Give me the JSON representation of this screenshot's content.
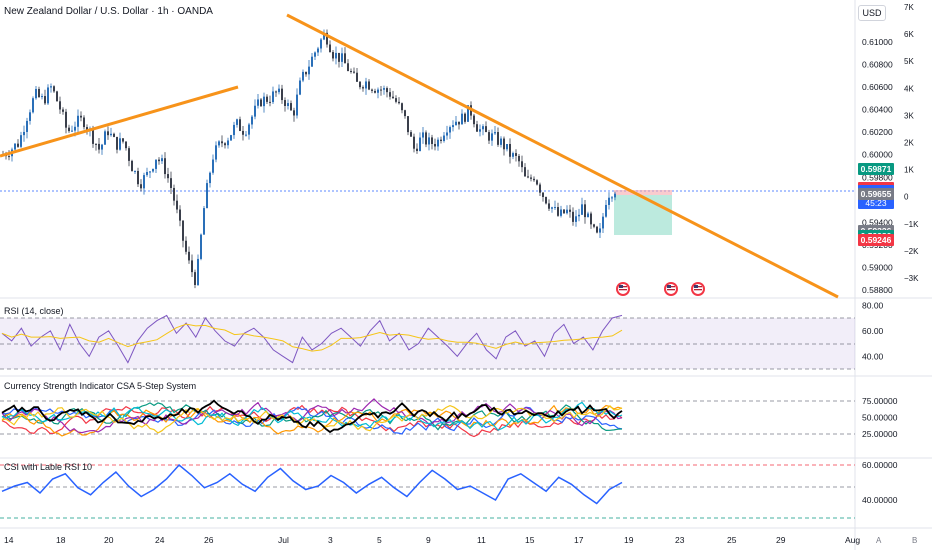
{
  "chart_data": [
    {
      "type": "candlestick",
      "title": "New Zealand Dollar / U.S. Dollar · 1h · OANDA",
      "currency": "USD",
      "price_ticks": [
        "0.61000",
        "0.60800",
        "0.60600",
        "0.60400",
        "0.60200",
        "0.60000",
        "0.59800",
        "0.59600",
        "0.59400",
        "0.59200",
        "0.59000",
        "0.58800"
      ],
      "left_axis_ticks": [
        "7K",
        "6K",
        "5K",
        "4K",
        "3K",
        "2K",
        "1K",
        "0",
        "−1K",
        "−2K",
        "−3K"
      ],
      "x_ticks": [
        "14",
        "18",
        "20",
        "24",
        "26",
        "Jul",
        "3",
        "5",
        "9",
        "11",
        "15",
        "17",
        "19",
        "23",
        "25",
        "29",
        "Aug"
      ],
      "closes": [
        0.6,
        0.6005,
        0.6011,
        0.6035,
        0.6053,
        0.6048,
        0.606,
        0.6043,
        0.602,
        0.6028,
        0.6031,
        0.6018,
        0.6004,
        0.6022,
        0.6009,
        0.6012,
        0.599,
        0.5975,
        0.5983,
        0.5998,
        0.599,
        0.5968,
        0.5935,
        0.5905,
        0.5887,
        0.5955,
        0.5998,
        0.601,
        0.6016,
        0.6027,
        0.6021,
        0.6035,
        0.6048,
        0.605,
        0.6055,
        0.6048,
        0.6035,
        0.6065,
        0.608,
        0.6095,
        0.6108,
        0.609,
        0.6085,
        0.6075,
        0.6062,
        0.6065,
        0.606,
        0.6058,
        0.6055,
        0.6045,
        0.603,
        0.6005,
        0.6015,
        0.601,
        0.6012,
        0.6025,
        0.603,
        0.6032,
        0.604,
        0.6023,
        0.6018,
        0.6015,
        0.601,
        0.6,
        0.5995,
        0.5975,
        0.5982,
        0.5965,
        0.5955,
        0.5945,
        0.595,
        0.594,
        0.5955,
        0.5935,
        0.5925,
        0.5965,
        0.597
      ],
      "highlighted_prices": [
        {
          "price": "0.59871",
          "color": "#089981"
        },
        {
          "price": "0.59706",
          "color": "#f23645"
        },
        {
          "price": "0.59676",
          "countdown": "45:23",
          "color": "#2962ff"
        },
        {
          "price": "0.59655",
          "color": "#787b86"
        },
        {
          "price": "0.59326",
          "color": "#787b86"
        },
        {
          "price": "0.59280",
          "color": "#089981"
        },
        {
          "price": "0.59246",
          "color": "#f23645"
        }
      ],
      "trendlines": "orange",
      "event_flags": 3
    },
    {
      "type": "line",
      "title": "RSI (14, close)",
      "y_ticks": [
        "80.00",
        "60.00",
        "40.00"
      ],
      "levels": [
        70,
        50,
        30
      ],
      "values": [
        58,
        52,
        62,
        48,
        55,
        60,
        45,
        65,
        50,
        40,
        55,
        60,
        48,
        35,
        52,
        62,
        68,
        72,
        58,
        66,
        55,
        70,
        60,
        52,
        48,
        58,
        62,
        55,
        45,
        40,
        35,
        55,
        45,
        50,
        58,
        62,
        55,
        48,
        60,
        68,
        52,
        58,
        45,
        50,
        62,
        55,
        48,
        40,
        50,
        58,
        45,
        38,
        55,
        60,
        48,
        52,
        40,
        58,
        65,
        50,
        55,
        45,
        60,
        70,
        72
      ]
    },
    {
      "type": "line",
      "title": "Currency Strength Indicator CSA 5-Step System",
      "y_ticks": [
        "75.00000",
        "50.00000",
        "25.00000"
      ]
    },
    {
      "type": "line",
      "title": "CSI with Lable RSI 10",
      "y_ticks": [
        "60.00000",
        "40.00000"
      ],
      "values": [
        45,
        48,
        50,
        44,
        52,
        55,
        47,
        43,
        50,
        56,
        48,
        42,
        46,
        52,
        60,
        54,
        47,
        50,
        55,
        49,
        45,
        53,
        58,
        51,
        46,
        48,
        54,
        50,
        44,
        49,
        53,
        47,
        42,
        50,
        57,
        52,
        46,
        48,
        44,
        40,
        52,
        55,
        50,
        45,
        53,
        49,
        43,
        38,
        46,
        50
      ]
    }
  ],
  "footer": {
    "a_label": "A",
    "b_label": "B"
  }
}
